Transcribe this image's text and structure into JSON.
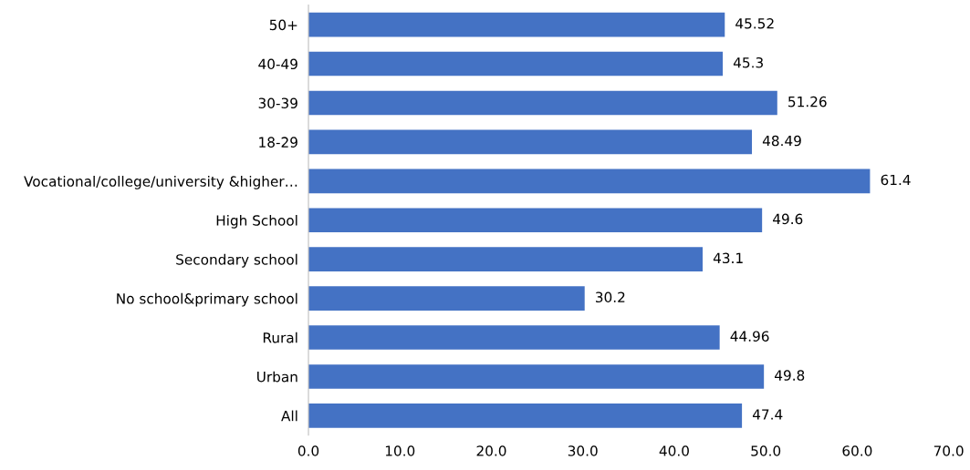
{
  "chart_data": {
    "type": "bar",
    "orientation": "horizontal",
    "categories": [
      "50+",
      "40-49",
      "30-39",
      "18-29",
      "Vocational/college/university &higher…",
      "High School",
      "Secondary school",
      "No school&primary school",
      "Rural",
      "Urban",
      "All"
    ],
    "values": [
      45.52,
      45.3,
      51.26,
      48.49,
      61.4,
      49.6,
      43.1,
      30.2,
      44.96,
      49.8,
      47.4
    ],
    "color": "#4472c4",
    "xlim": [
      0,
      70
    ],
    "xticks": [
      {
        "value": 0,
        "label": "0.0"
      },
      {
        "value": 10,
        "label": "10.0"
      },
      {
        "value": 20,
        "label": "20.0"
      },
      {
        "value": 30,
        "label": "30.0"
      },
      {
        "value": 40,
        "label": "40.0"
      },
      {
        "value": 50,
        "label": "50.0"
      },
      {
        "value": 60,
        "label": "60.0"
      },
      {
        "value": 70,
        "label": "70.0"
      }
    ],
    "data_labels": true,
    "grid": false,
    "legend": false
  }
}
